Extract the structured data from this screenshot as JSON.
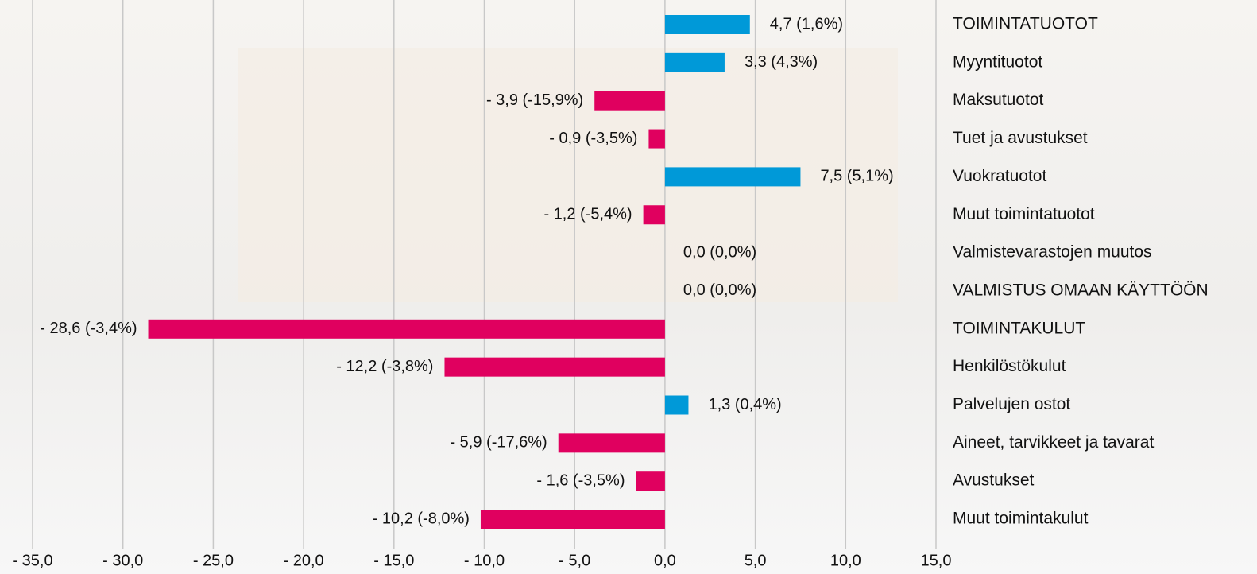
{
  "chart_data": {
    "type": "hbar",
    "categories": [
      "TOIMINTATUOTOT",
      "Myyntituotot",
      "Maksutuotot",
      "Tuet ja avustukset",
      "Vuokratuotot",
      "Muut toimintatuotot",
      "Valmistevarastojen muutos",
      "VALMISTUS OMAAN KÄYTTÖÖN",
      "TOIMINTAKULUT",
      "Henkilöstökulut",
      "Palvelujen ostot",
      "Aineet, tarvikkeet ja tavarat",
      "Avustukset",
      "Muut toimintakulut"
    ],
    "values": [
      4.7,
      3.3,
      -3.9,
      -0.9,
      7.5,
      -1.2,
      0.0,
      0.0,
      -28.6,
      -12.2,
      1.3,
      -5.9,
      -1.6,
      -10.2
    ],
    "value_labels": [
      "4,7 (1,6%)",
      "3,3 (4,3%)",
      "- 3,9 (-15,9%)",
      "- 0,9 (-3,5%)",
      "7,5 (5,1%)",
      "- 1,2 (-5,4%)",
      "0,0 (0,0%)",
      "0,0 (0,0%)",
      "- 28,6 (-3,4%)",
      "- 12,2 (-3,8%)",
      "1,3 (0,4%)",
      "- 5,9 (-17,6%)",
      "- 1,6 (-3,5%)",
      "- 10,2 (-8,0%)"
    ],
    "positive_color": "#0099d8",
    "negative_color": "#e0005f",
    "xlim": [
      -35,
      15
    ],
    "xticks": [
      {
        "value": -35,
        "label": "- 35,0"
      },
      {
        "value": -30,
        "label": "- 30,0"
      },
      {
        "value": -25,
        "label": "- 25,0"
      },
      {
        "value": -20,
        "label": "- 20,0"
      },
      {
        "value": -15,
        "label": "- 15,0"
      },
      {
        "value": -10,
        "label": "- 10,0"
      },
      {
        "value": -5,
        "label": "- 5,0"
      },
      {
        "value": 0,
        "label": "0,0"
      },
      {
        "value": 5,
        "label": "5,0"
      },
      {
        "value": 10,
        "label": "10,0"
      },
      {
        "value": 15,
        "label": "15,0"
      }
    ],
    "grid": true
  }
}
